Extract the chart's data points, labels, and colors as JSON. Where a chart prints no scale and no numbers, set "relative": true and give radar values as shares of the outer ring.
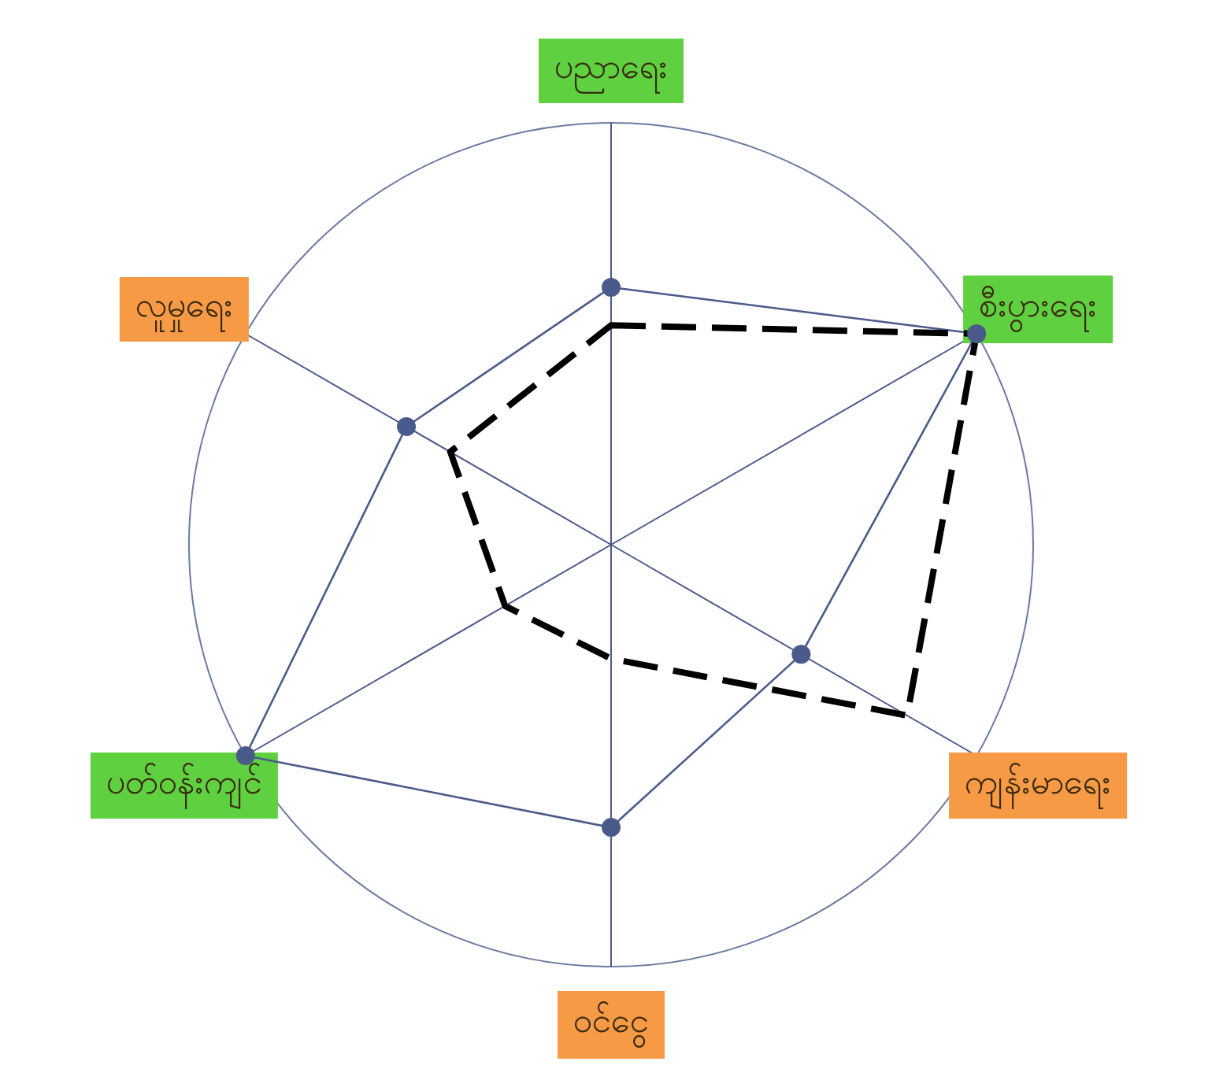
{
  "chart_data": {
    "type": "radar",
    "relative": true,
    "categories": [
      "ပညာရေး",
      "စီးပွားရေး",
      "ကျန်းမာရေး",
      "ဝင်ငွေ",
      "ပတ်ဝန်းကျင်",
      "လူမှုရေး"
    ],
    "series": [
      {
        "color": "#4a5a8a",
        "line_style": "solid",
        "marker": "circle",
        "values": [
          0.61,
          1,
          0.52,
          0.67,
          1,
          0.56
        ]
      },
      {
        "color": "#000000",
        "line_style": "dashed",
        "marker": "none",
        "values": [
          0.52,
          1,
          0.81,
          0.27,
          0.29,
          0.44
        ]
      }
    ]
  }
}
